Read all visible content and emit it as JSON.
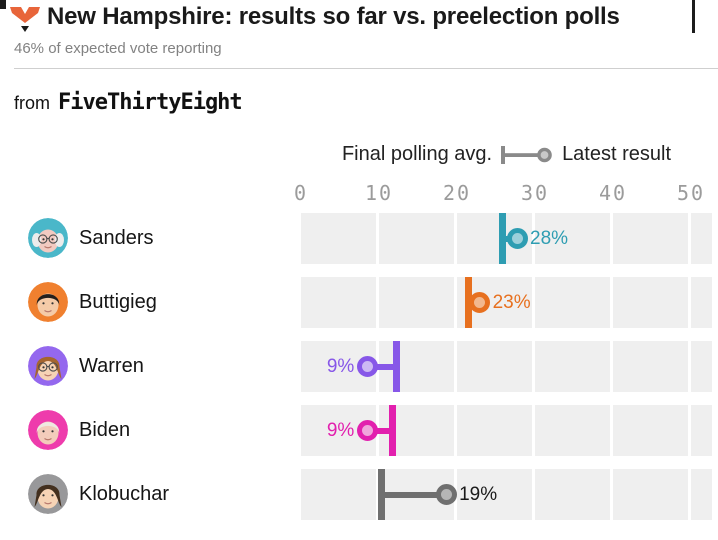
{
  "header": {
    "logo_icon": "fivethirtyeight-fox-icon",
    "logo_color": "#e8653a",
    "title": "New Hampshire: results so far vs. preelection polls",
    "subtitle": "46% of expected vote reporting"
  },
  "attribution": {
    "prefix": "from",
    "brand": "FiveThirtyEight"
  },
  "legend": {
    "poll_label": "Final polling avg.",
    "result_label": "Latest result",
    "glyph_color": "#8a8a8a",
    "glyph_fill": "#c9c9c9"
  },
  "chart_data": {
    "type": "dumbbell",
    "title": "New Hampshire: results so far vs. preelection polls",
    "subtitle": "46% of expected vote reporting",
    "source": "FiveThirtyEight",
    "legend": [
      "Final polling avg.",
      "Latest result"
    ],
    "unit": "percent of vote",
    "x_axis": {
      "ticks": [
        0,
        10,
        20,
        30,
        40,
        50
      ],
      "range": [
        0,
        52.7
      ],
      "gridlines": true
    },
    "series": [
      {
        "name": "Sanders",
        "poll_avg": 25.8,
        "result": 27.7,
        "result_label": "28%",
        "label_side": "right",
        "color": "#2e9db2",
        "fill": "#9cd0db",
        "label_color": "#2e9db2",
        "avatar": {
          "bg": "#4ab7c9",
          "skin": "#f2cac1",
          "hair": "#ececec",
          "hair_style": "side-puffs",
          "glasses": true
        }
      },
      {
        "name": "Buttigieg",
        "poll_avg": 21.5,
        "result": 22.9,
        "result_label": "23%",
        "label_side": "right",
        "color": "#e7701f",
        "fill": "#f2b88e",
        "label_color": "#e7701f",
        "avatar": {
          "bg": "#f0802f",
          "skin": "#f5cba8",
          "hair": "#241f1c",
          "hair_style": "cap",
          "glasses": false
        }
      },
      {
        "name": "Warren",
        "poll_avg": 12.3,
        "result": 8.5,
        "result_label": "9%",
        "label_side": "left",
        "color": "#8757e8",
        "fill": "#cdb9f4",
        "label_color": "#8757e8",
        "avatar": {
          "bg": "#9468ee",
          "skin": "#f6d3b5",
          "hair": "#a5652f",
          "hair_style": "long",
          "glasses": true
        }
      },
      {
        "name": "Biden",
        "poll_avg": 11.7,
        "result": 8.5,
        "result_label": "9%",
        "label_side": "left",
        "color": "#e220ae",
        "fill": "#f0a5dc",
        "label_color": "#e220ae",
        "avatar": {
          "bg": "#ee3cac",
          "skin": "#f3ccbb",
          "hair": "#efe9e1",
          "hair_style": "cap",
          "glasses": false
        }
      },
      {
        "name": "Klobuchar",
        "poll_avg": 10.3,
        "result": 18.6,
        "result_label": "19%",
        "label_side": "right",
        "color": "#6f6f6f",
        "fill": "#b5b5b5",
        "label_color": "#1a1a1a",
        "avatar": {
          "bg": "#98989a",
          "skin": "#f6d3b5",
          "hair": "#43301f",
          "hair_style": "long",
          "glasses": false
        }
      }
    ]
  }
}
